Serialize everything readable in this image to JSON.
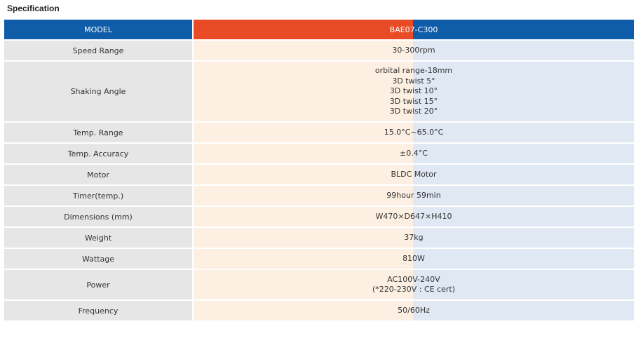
{
  "section_title": "Specification",
  "header": {
    "label": "MODEL",
    "value": "BAE07-C300"
  },
  "rows": [
    {
      "label": "Speed Range",
      "lines": [
        "30-300rpm"
      ]
    },
    {
      "label": "Shaking Angle",
      "lines": [
        "orbital range-18mm",
        "3D twist 5°",
        "3D twist 10°",
        "3D twist 15°",
        "3D twist 20°"
      ]
    },
    {
      "label": "Temp. Range",
      "lines": [
        "15.0°C~65.0°C"
      ]
    },
    {
      "label": "Temp. Accuracy",
      "lines": [
        "±0.4°C"
      ]
    },
    {
      "label": "Motor",
      "lines": [
        "BLDC Motor"
      ]
    },
    {
      "label": "Timer(temp.)",
      "lines": [
        "99hour 59min"
      ]
    },
    {
      "label": "Dimensions (mm)",
      "lines": [
        "W470×D647×H410"
      ]
    },
    {
      "label": "Weight",
      "lines": [
        "37kg"
      ]
    },
    {
      "label": "Wattage",
      "lines": [
        "810W"
      ]
    },
    {
      "label": "Power",
      "lines": [
        "AC100V-240V",
        "(*220-230V : CE cert)"
      ]
    },
    {
      "label": "Frequency",
      "lines": [
        "50/60Hz"
      ]
    }
  ],
  "colors": {
    "header_label_bg": "#0f5ca9",
    "header_value_accent": "#e84b25",
    "label_bg": "#e6e6e6",
    "value_bg_left": "#fdf0e3",
    "value_bg_right": "#e0e8f4"
  }
}
